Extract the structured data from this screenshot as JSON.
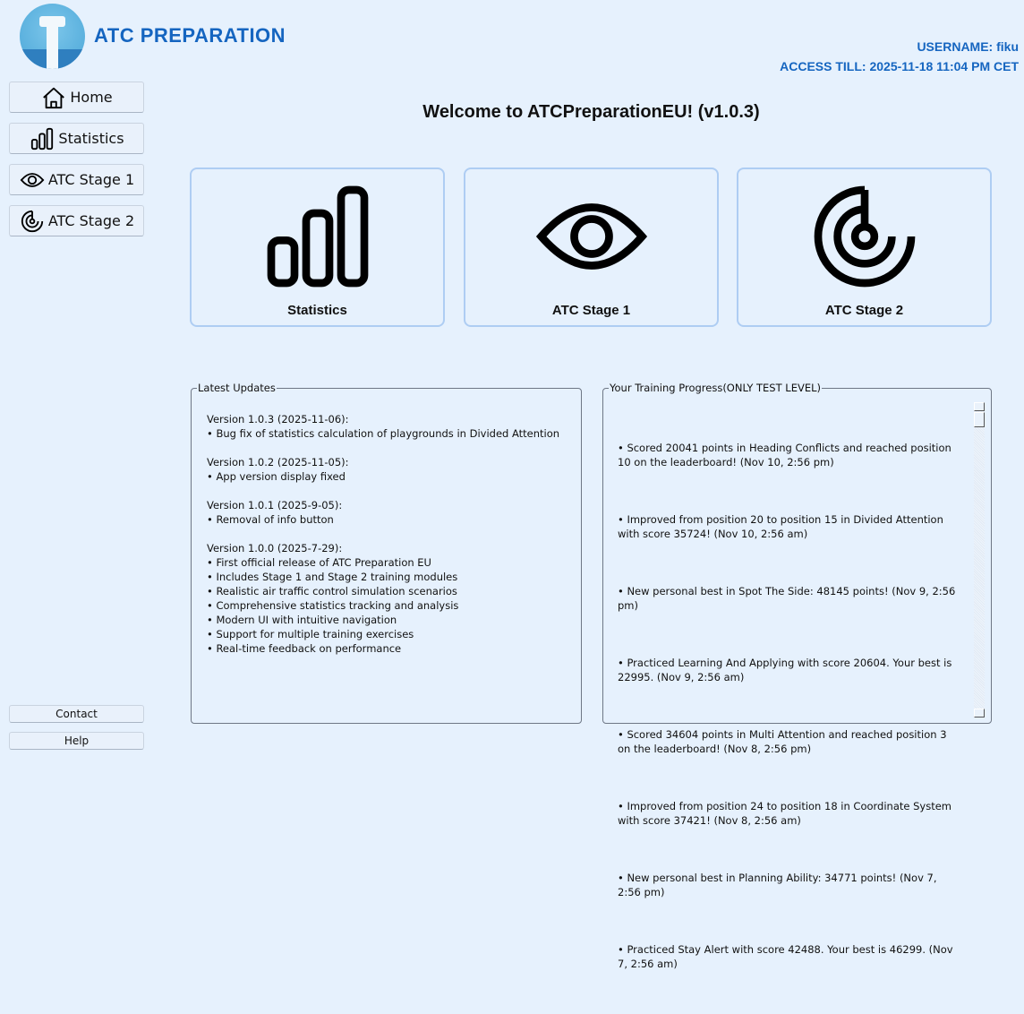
{
  "brand": {
    "name": "ATC PREPARATION"
  },
  "user": {
    "username": "USERNAME: fiku",
    "access": "ACCESS TILL: 2025-11-18 11:04 PM CET"
  },
  "sidebar": {
    "items": [
      {
        "label": "Home",
        "icon": "home-icon"
      },
      {
        "label": "Statistics",
        "icon": "bar-chart-icon"
      },
      {
        "label": "ATC Stage 1",
        "icon": "eye-icon"
      },
      {
        "label": "ATC Stage 2",
        "icon": "radar-icon"
      }
    ],
    "contact": "Contact",
    "help": "Help"
  },
  "main": {
    "title": "Welcome to ATCPreparationEU! (v1.0.3)",
    "cards": [
      {
        "label": "Statistics",
        "icon": "bar-chart-icon"
      },
      {
        "label": "ATC Stage 1",
        "icon": "eye-icon"
      },
      {
        "label": "ATC Stage 2",
        "icon": "radar-icon"
      }
    ]
  },
  "updates": {
    "title": "Latest Updates",
    "text": "Version 1.0.3 (2025-11-06):\n• Bug fix of statistics calculation of playgrounds in Divided Attention\n\nVersion 1.0.2 (2025-11-05):\n• App version display fixed\n\nVersion 1.0.1 (2025-9-05):\n• Removal of info button\n\nVersion 1.0.0 (2025-7-29):\n• First official release of ATC Preparation EU\n• Includes Stage 1 and Stage 2 training modules\n• Realistic air traffic control simulation scenarios\n• Comprehensive statistics tracking and analysis\n• Modern UI with intuitive navigation\n• Support for multiple training exercises\n• Real-time feedback on performance"
  },
  "progress": {
    "title": "Your Training Progress(ONLY TEST LEVEL)",
    "items": [
      "• Scored 20041 points in Heading Conflicts and reached position 10 on the leaderboard! (Nov 10, 2:56 pm)",
      "• Improved from position 20 to position 15 in Divided Attention with score 35724! (Nov 10, 2:56 am)",
      "• New personal best in Spot The Side: 48145 points! (Nov 9, 2:56 pm)",
      "• Practiced Learning And Applying with score 20604. Your best is 22995. (Nov 9, 2:56 am)",
      "• Scored 34604 points in Multi Attention and reached position 3 on the leaderboard! (Nov 8, 2:56 pm)",
      "• Improved from position 24 to position 18 in Coordinate System with score 37421! (Nov 8, 2:56 am)",
      "• New personal best in Planning Ability: 34771 points! (Nov 7, 2:56 pm)",
      "• Practiced Stay Alert with score 42488. Your best is 46299. (Nov 7, 2:56 am)"
    ]
  }
}
